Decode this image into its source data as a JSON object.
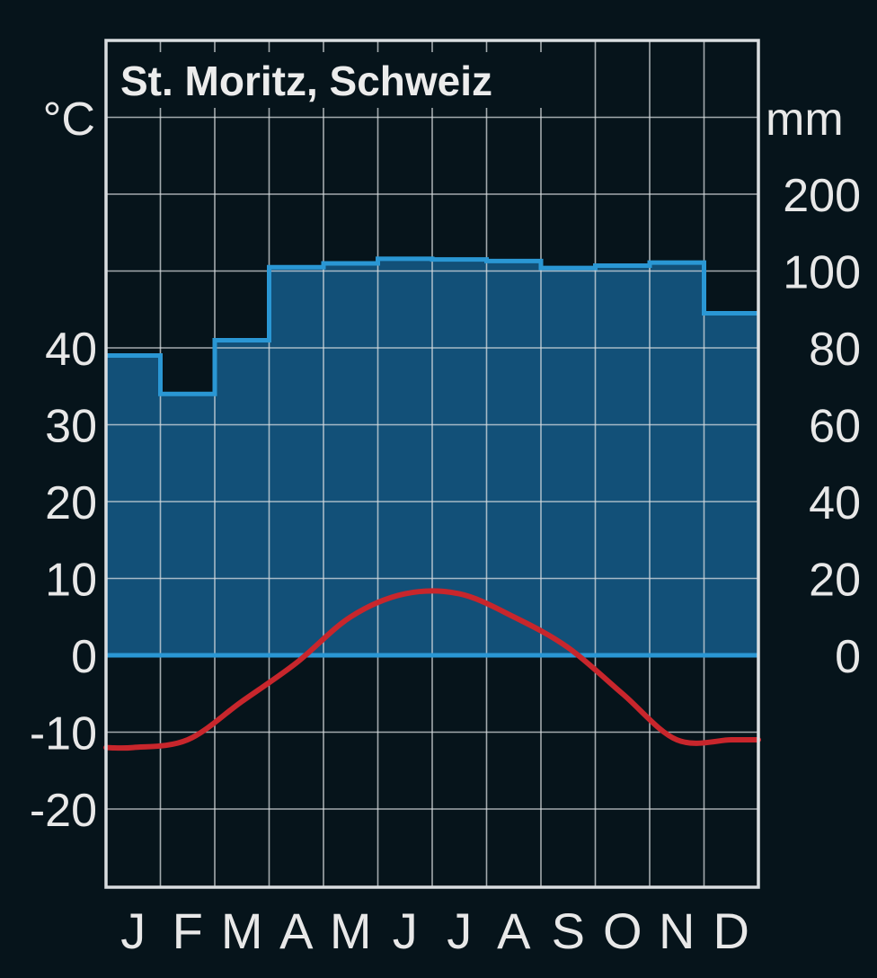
{
  "chart_data": {
    "type": "climate",
    "title": "St. Moritz, Schweiz",
    "categories": [
      "J",
      "F",
      "M",
      "A",
      "M",
      "J",
      "J",
      "A",
      "S",
      "O",
      "N",
      "D"
    ],
    "left_axis": {
      "unit": "°C",
      "ticks": [
        40,
        30,
        20,
        10,
        0,
        -10,
        -20
      ],
      "range": [
        -30,
        70
      ]
    },
    "right_axis": {
      "unit": "mm",
      "ticks": [
        200,
        100,
        80,
        60,
        40,
        20,
        0
      ],
      "range": [
        0,
        220
      ]
    },
    "precipitation": {
      "type": "bar",
      "values": [
        78,
        68,
        82,
        105,
        110,
        116,
        115,
        113,
        104,
        107,
        111,
        89
      ],
      "color": "#2a97d4",
      "fill": "#125078"
    },
    "temperature": {
      "type": "line",
      "values": [
        -12,
        -11,
        -6,
        -1,
        5,
        8,
        8,
        5,
        1,
        -5,
        -11,
        -11
      ],
      "color": "#c8262c"
    },
    "grid": true
  }
}
